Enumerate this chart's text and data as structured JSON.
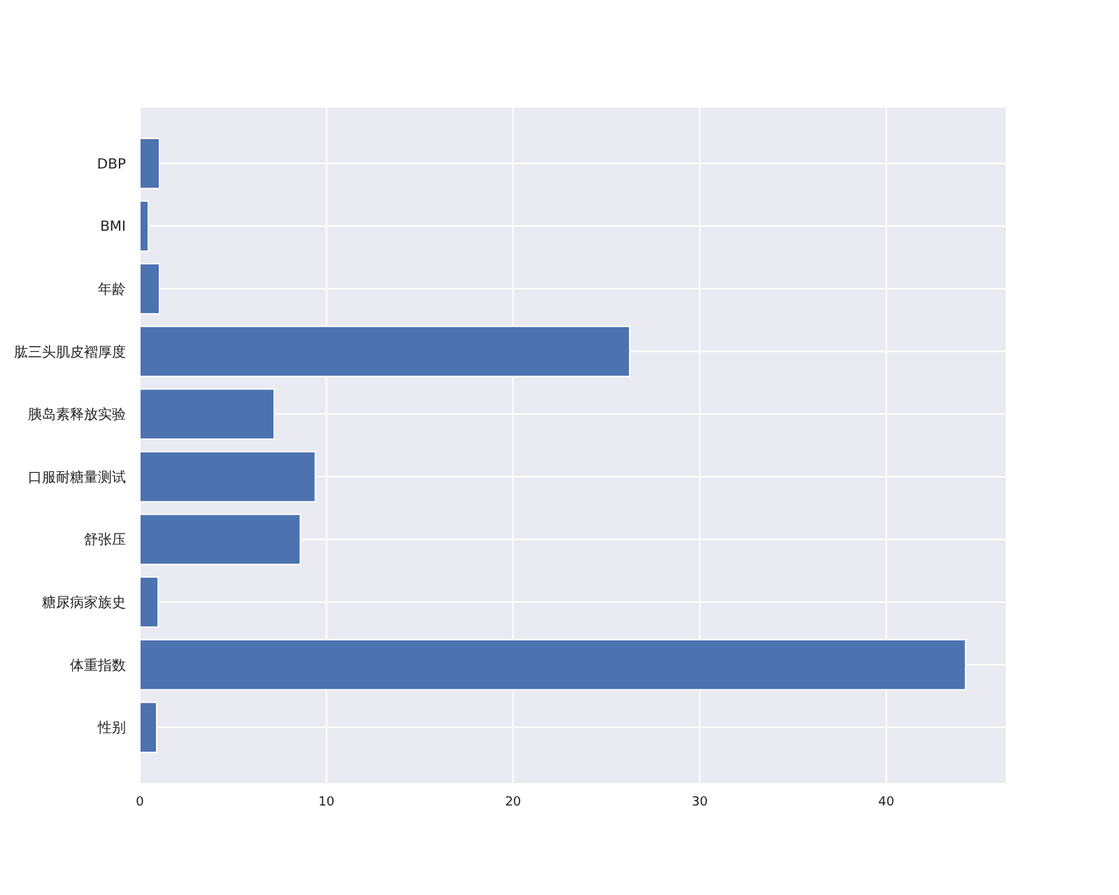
{
  "chart_data": {
    "type": "bar",
    "orientation": "horizontal",
    "categories": [
      "DBP",
      "BMI",
      "年龄",
      "肱三头肌皮褶厚度",
      "胰岛素释放实验",
      "口服耐糖量测试",
      "舒张压",
      "糖尿病家族史",
      "体重指数",
      "性别"
    ],
    "values": [
      1.05,
      0.45,
      1.05,
      26.25,
      7.2,
      9.4,
      8.6,
      0.98,
      44.25,
      0.9
    ],
    "color": "#4c72b0",
    "xlim": [
      0,
      46.4
    ],
    "xticks": [
      0,
      10,
      20,
      30,
      40
    ],
    "grid": true
  }
}
